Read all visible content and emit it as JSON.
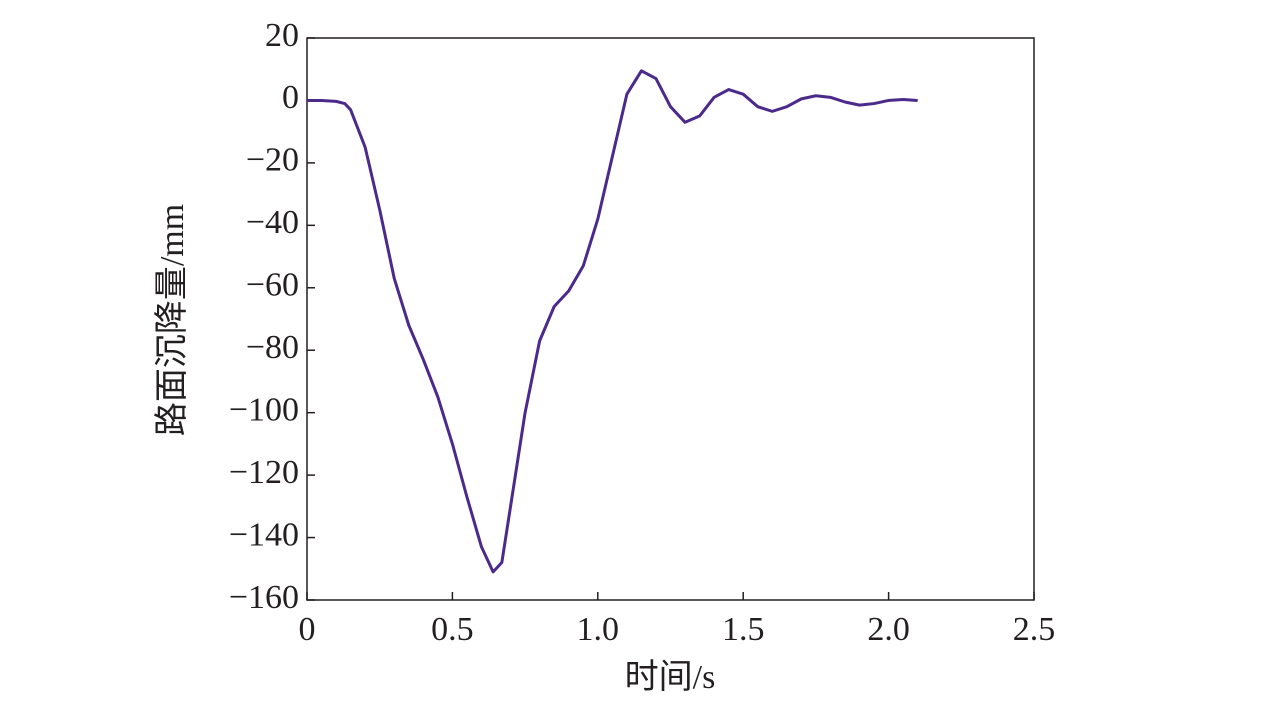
{
  "chart_data": {
    "type": "line",
    "xlabel": "时间/s",
    "ylabel": "路面沉降量/mm",
    "x": [
      0,
      0.05,
      0.1,
      0.13,
      0.15,
      0.2,
      0.25,
      0.3,
      0.35,
      0.4,
      0.45,
      0.5,
      0.55,
      0.6,
      0.64,
      0.67,
      0.7,
      0.75,
      0.8,
      0.85,
      0.9,
      0.95,
      1.0,
      1.05,
      1.1,
      1.15,
      1.2,
      1.25,
      1.3,
      1.35,
      1.4,
      1.45,
      1.5,
      1.55,
      1.6,
      1.65,
      1.7,
      1.75,
      1.8,
      1.85,
      1.9,
      1.95,
      2.0,
      2.05,
      2.1
    ],
    "series": [
      {
        "color": "#4b2a8c",
        "values": [
          0,
          0,
          -0.3,
          -1,
          -3,
          -15,
          -35,
          -57,
          -72,
          -83,
          -95,
          -110,
          -127,
          -143,
          -151,
          -148,
          -130,
          -100,
          -77,
          -66,
          -61,
          -53,
          -38,
          -18,
          2,
          9.5,
          7,
          -2,
          -7,
          -5,
          1,
          3.5,
          2,
          -2,
          -3.5,
          -2,
          0.5,
          1.5,
          1,
          -0.5,
          -1.5,
          -1,
          0,
          0.3,
          0
        ]
      }
    ],
    "xlim": [
      0,
      2.5
    ],
    "xticks": [
      0,
      0.5,
      {
        "value": 1,
        "label": "1.0"
      },
      1.5,
      {
        "value": 2,
        "label": "2.0"
      },
      2.5
    ],
    "ylim": [
      -160,
      20
    ],
    "yticks": [
      {
        "value": -160,
        "label": "−160"
      },
      {
        "value": -140,
        "label": "−140"
      },
      {
        "value": -120,
        "label": "−120"
      },
      {
        "value": -100,
        "label": "−100"
      },
      {
        "value": -80,
        "label": "−80"
      },
      {
        "value": -60,
        "label": "−60"
      },
      {
        "value": -40,
        "label": "−40"
      },
      {
        "value": -20,
        "label": "−20"
      },
      0,
      20
    ]
  }
}
